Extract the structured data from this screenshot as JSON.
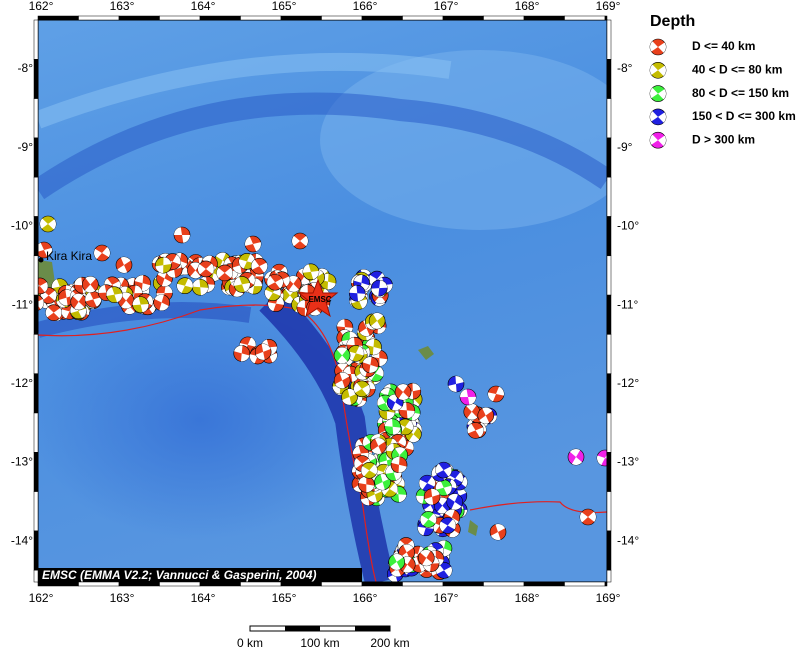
{
  "map": {
    "lon_labels": [
      "162°",
      "163°",
      "164°",
      "165°",
      "166°",
      "167°",
      "168°",
      "169°"
    ],
    "lat_labels": [
      "-8°",
      "-9°",
      "-10°",
      "-11°",
      "-12°",
      "-13°",
      "-14°"
    ],
    "place": "Kira Kira",
    "epicenter": "EMSC",
    "credit": "EMSC (EMMA V2.2; Vannucci & Gasperini, 2004)",
    "scale": {
      "labels": [
        "0 km",
        "100 km",
        "200 km"
      ]
    },
    "legend": {
      "title": "Depth",
      "items": [
        {
          "label": "D <= 40 km",
          "color": "#e8401c"
        },
        {
          "label": "40 < D <= 80 km",
          "color": "#c4bc00"
        },
        {
          "label": "80 < D <= 150 km",
          "color": "#3cf03c"
        },
        {
          "label": "150 < D <= 300 km",
          "color": "#2020e0"
        },
        {
          "label": "D > 300 km",
          "color": "#f020e8"
        }
      ]
    }
  }
}
